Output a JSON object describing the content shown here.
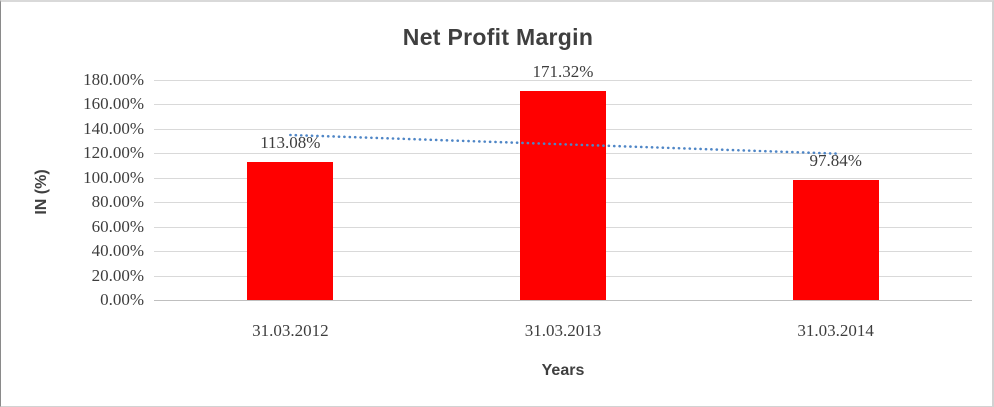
{
  "chart_data": {
    "type": "bar",
    "title": "Net Profit Margin",
    "xlabel": "Years",
    "ylabel": "IN (%)",
    "categories": [
      "31.03.2012",
      "31.03.2013",
      "31.03.2014"
    ],
    "values": [
      113.08,
      171.32,
      97.84
    ],
    "data_labels": [
      "113.08%",
      "171.32%",
      "97.84%"
    ],
    "ylim": [
      0,
      180
    ],
    "ytick_step": 20,
    "ytick_labels": [
      "0.00%",
      "20.00%",
      "40.00%",
      "60.00%",
      "80.00%",
      "100.00%",
      "120.00%",
      "140.00%",
      "160.00%",
      "180.00%"
    ],
    "grid": true,
    "legend": "none",
    "bar_color": "#ff0000",
    "gridline_color": "#d9d9d9",
    "axis_line_color": "#bfbfbf",
    "text_color": "#3d3d3d",
    "title_color": "#3f3f3f",
    "trendline": {
      "type": "linear",
      "style": "dotted",
      "color": "#4f86c6",
      "start_value": 135.0,
      "end_value": 119.8
    }
  }
}
